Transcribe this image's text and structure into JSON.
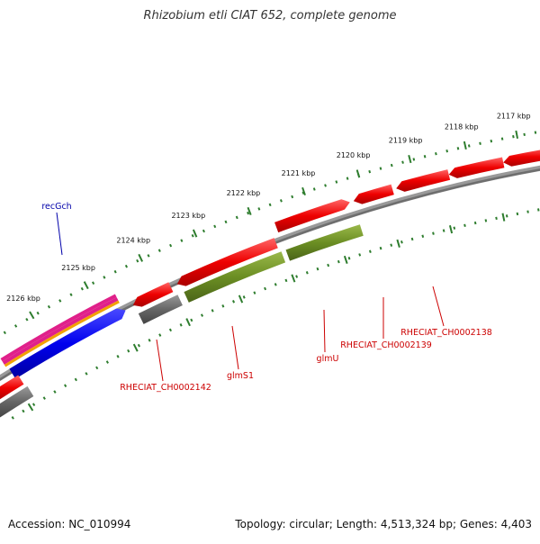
{
  "title": "Rhizobium etli CIAT 652, complete genome",
  "footer": {
    "accession": "Accession: NC_010994",
    "summary": "Topology: circular; Length: 4,513,324 bp; Genes: 4,403"
  },
  "scale_labels": [
    "2117 kbp",
    "2118 kbp",
    "2119 kbp",
    "2120 kbp",
    "2121 kbp",
    "2122 kbp",
    "2123 kbp",
    "2124 kbp",
    "2125 kbp",
    "2126 kbp"
  ],
  "gene_labels": [
    "recGch",
    "RHECIAT_CH0002142",
    "glmS1",
    "glmU",
    "RHECIAT_CH0002139",
    "RHECIAT_CH0002138"
  ],
  "colors": {
    "backbone": "#808080",
    "tick": "#2e7d2e",
    "cds": "#ee0000",
    "gene": "#666666",
    "product": "#6b8e23",
    "blue": "#0000ee",
    "pink": "#e0208a",
    "orange": "#f2a000",
    "label_red": "#cc0000",
    "label_blue": "#0000aa"
  }
}
